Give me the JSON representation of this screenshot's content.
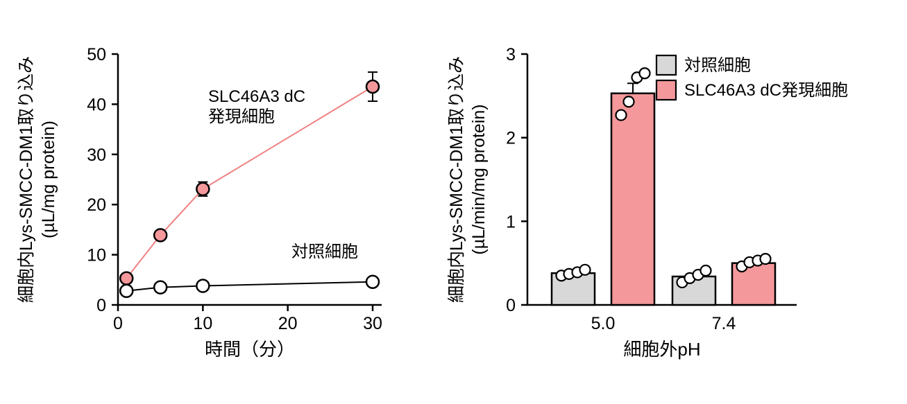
{
  "figure": {
    "background": "#ffffff",
    "axis_color": "#000000"
  },
  "colors": {
    "control_fill": "#d8d8d8",
    "slc46a3_fill": "#f4989b",
    "slc46a3_line": "#f08080",
    "axis": "#000000",
    "marker_open_fill": "#ffffff"
  },
  "chart_data": [
    {
      "id": "time-course",
      "type": "line",
      "title": "",
      "xlabel": "時間（分）",
      "ylabel": [
        "細胞内Lys-SMCC-DM1取り込み",
        "(µL/mg protein)"
      ],
      "xlim": [
        0,
        31
      ],
      "ylim": [
        0,
        50
      ],
      "xticks": [
        0,
        10,
        20,
        30
      ],
      "yticks": [
        0,
        10,
        20,
        30,
        40,
        50
      ],
      "grid": false,
      "series": [
        {
          "name": "対照細胞",
          "line_color": "#000000",
          "marker_fill": "#ffffff",
          "marker_stroke": "#000000",
          "x": [
            1,
            5,
            10,
            30
          ],
          "y": [
            2.8,
            3.5,
            3.8,
            4.6
          ],
          "yerr": [
            0.3,
            0.3,
            0.3,
            0.4
          ],
          "annotation": {
            "lines": [
              "対照細胞"
            ]
          }
        },
        {
          "name": "SLC46A3 dC発現細胞",
          "line_color": "#f08080",
          "marker_fill": "#f4989b",
          "marker_stroke": "#000000",
          "x": [
            1,
            5,
            10,
            30
          ],
          "y": [
            5.3,
            13.9,
            23.1,
            43.5
          ],
          "yerr": [
            0.9,
            0.8,
            1.4,
            2.9
          ],
          "annotation": {
            "lines": [
              "SLC46A3 dC",
              "発現細胞"
            ]
          }
        }
      ]
    },
    {
      "id": "ph-bars",
      "type": "bar",
      "title": "",
      "xlabel": "細胞外pH",
      "ylabel": [
        "細胞内Lys-SMCC-DM1取り込み",
        "(µL/min/mg protein)"
      ],
      "categories": [
        "5.0",
        "7.4"
      ],
      "ylim": [
        0,
        3
      ],
      "yticks": [
        0,
        1,
        2,
        3
      ],
      "grid": false,
      "series": [
        {
          "name": "対照細胞",
          "fill": "#d8d8d8",
          "stroke": "#000000",
          "values": [
            0.38,
            0.34
          ],
          "yerr": [
            0.02,
            0.03
          ],
          "points": [
            [
              0.35,
              0.37,
              0.39,
              0.42
            ],
            [
              0.27,
              0.32,
              0.36,
              0.41
            ]
          ]
        },
        {
          "name": "SLC46A3 dC発現細胞",
          "fill": "#f4989b",
          "stroke": "#000000",
          "values": [
            2.53,
            0.5
          ],
          "yerr": [
            0.12,
            0.03
          ],
          "points": [
            [
              2.27,
              2.43,
              2.72,
              2.77
            ],
            [
              0.46,
              0.51,
              0.53,
              0.55
            ]
          ]
        }
      ],
      "legend": {
        "position": "top-right",
        "items": [
          {
            "label": "対照細胞",
            "fill": "#d8d8d8"
          },
          {
            "label": "SLC46A3 dC発現細胞",
            "fill": "#f4989b"
          }
        ]
      }
    }
  ]
}
